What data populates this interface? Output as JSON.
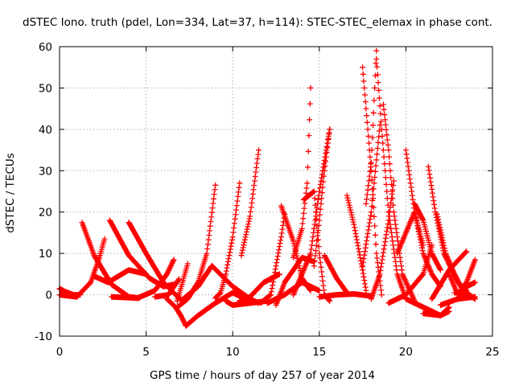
{
  "chart_data": {
    "type": "scatter",
    "title": "dSTEC Iono. truth (pdel, Lon=334, Lat=37, h=114): STEC-STEC_elemax in phase cont.",
    "xlabel": "GPS time / hours of day 257 of year 2014",
    "ylabel": "dSTEC  / TECUs",
    "xlim": [
      0,
      25
    ],
    "ylim": [
      -10,
      60
    ],
    "xticks": [
      "0",
      "5",
      "10",
      "15",
      "20",
      "25"
    ],
    "yticks": [
      "-10",
      "0",
      "10",
      "20",
      "30",
      "40",
      "50",
      "60"
    ],
    "grid": true,
    "marker": "+",
    "color": "#ff0000",
    "series": [
      {
        "x": [
          0.0,
          0.3,
          0.8,
          1.2
        ],
        "y": [
          1.5,
          0.8,
          0.0,
          0.0
        ]
      },
      {
        "x": [
          0.0,
          1.0,
          1.8,
          2.3,
          2.6
        ],
        "y": [
          0.0,
          -0.5,
          3.0,
          9.0,
          13.5
        ]
      },
      {
        "x": [
          1.3,
          2.0,
          3.0,
          4.0,
          4.6
        ],
        "y": [
          17.5,
          9.5,
          2.5,
          -0.5,
          -0.8
        ]
      },
      {
        "x": [
          2.0,
          2.8,
          4.0,
          5.0
        ],
        "y": [
          4.5,
          3.0,
          6.0,
          5.0
        ]
      },
      {
        "x": [
          2.9,
          4.0,
          5.2,
          6.0,
          6.6
        ],
        "y": [
          18.0,
          9.5,
          4.0,
          2.0,
          2.5
        ]
      },
      {
        "x": [
          3.0,
          4.5,
          5.5,
          6.2,
          6.6
        ],
        "y": [
          -0.5,
          -0.8,
          1.0,
          5.0,
          8.5
        ]
      },
      {
        "x": [
          4.0,
          5.0,
          6.0,
          6.7,
          7.0
        ],
        "y": [
          17.5,
          10.0,
          3.0,
          0.0,
          -1.0
        ]
      },
      {
        "x": [
          5.5,
          6.3,
          6.6,
          6.9
        ],
        "y": [
          -0.5,
          0.0,
          2.0,
          3.8
        ]
      },
      {
        "x": [
          6.2,
          6.7,
          7.0,
          7.3
        ],
        "y": [
          -1.0,
          -3.0,
          -5.0,
          -7.5
        ]
      },
      {
        "x": [
          6.8,
          7.1,
          7.4
        ],
        "y": [
          -1.5,
          3.0,
          7.5
        ]
      },
      {
        "x": [
          7.3,
          8.0,
          9.0,
          10.0,
          10.5
        ],
        "y": [
          -7.5,
          -5.0,
          -2.0,
          0.5,
          -0.5
        ]
      },
      {
        "x": [
          6.8,
          7.4,
          8.0,
          8.5,
          9.0
        ],
        "y": [
          -3.0,
          -1.0,
          3.0,
          10.0,
          26.5
        ]
      },
      {
        "x": [
          7.0,
          8.0,
          8.8
        ],
        "y": [
          -1.5,
          2.0,
          7.0
        ]
      },
      {
        "x": [
          9.0,
          9.3,
          9.6,
          10.0,
          10.4
        ],
        "y": [
          -0.8,
          0.5,
          5.0,
          14.0,
          27.0
        ]
      },
      {
        "x": [
          9.6,
          10.0,
          11.0,
          12.0
        ],
        "y": [
          -1.5,
          -2.5,
          -2.0,
          -1.5
        ]
      },
      {
        "x": [
          8.8,
          10.0,
          11.0,
          11.5
        ],
        "y": [
          7.0,
          2.0,
          -1.0,
          -2.0
        ]
      },
      {
        "x": [
          10.5,
          11.0,
          11.5
        ],
        "y": [
          9.5,
          19.0,
          35.0
        ]
      },
      {
        "x": [
          10.4,
          11.0,
          11.8,
          12.7
        ],
        "y": [
          -1.5,
          -0.5,
          3.0,
          5.0
        ]
      },
      {
        "x": [
          11.6,
          12.2,
          12.8,
          13.0
        ],
        "y": [
          -2.0,
          0.0,
          14.0,
          19.5
        ]
      },
      {
        "x": [
          12.5,
          13.0,
          14.0,
          14.7
        ],
        "y": [
          -2.5,
          3.0,
          9.0,
          8.0
        ]
      },
      {
        "x": [
          12.0,
          13.0,
          14.0,
          15.0
        ],
        "y": [
          -2.0,
          0.0,
          3.0,
          1.0
        ]
      },
      {
        "x": [
          12.8,
          13.5,
          14.0,
          14.5
        ],
        "y": [
          21.5,
          13.0,
          4.0,
          1.0
        ]
      },
      {
        "x": [
          13.5,
          14.0,
          14.3,
          14.5
        ],
        "y": [
          9.0,
          16.0,
          27.0,
          50.0
        ]
      },
      {
        "x": [
          14.1,
          14.7,
          15.0,
          15.3,
          15.6
        ],
        "y": [
          23.0,
          25.0,
          10.0,
          0.0,
          -1.5
        ]
      },
      {
        "x": [
          14.7,
          15.0,
          15.3,
          15.6
        ],
        "y": [
          7.0,
          18.0,
          30.0,
          40.0
        ]
      },
      {
        "x": [
          15.6,
          15.0,
          14.5,
          13.5
        ],
        "y": [
          40.0,
          25.0,
          10.0,
          0.0
        ]
      },
      {
        "x": [
          15.3,
          16.0,
          16.6
        ],
        "y": [
          9.5,
          4.0,
          0.5
        ]
      },
      {
        "x": [
          15.0,
          16.0,
          17.0,
          18.0
        ],
        "y": [
          -0.5,
          0.0,
          0.2,
          -0.3
        ]
      },
      {
        "x": [
          16.6,
          17.0,
          17.5,
          17.7
        ],
        "y": [
          24.0,
          17.0,
          6.0,
          1.0
        ]
      },
      {
        "x": [
          17.5,
          18.0,
          18.3,
          18.6
        ],
        "y": [
          55.0,
          30.0,
          10.0,
          0.0
        ]
      },
      {
        "x": [
          17.7,
          18.0,
          18.3
        ],
        "y": [
          22.0,
          32.0,
          59.0
        ]
      },
      {
        "x": [
          18.3,
          18.6,
          19.0,
          19.5,
          20.0
        ],
        "y": [
          57.0,
          40.0,
          20.0,
          5.0,
          -1.0
        ]
      },
      {
        "x": [
          18.0,
          18.5,
          19.0,
          19.3
        ],
        "y": [
          -1.0,
          5.0,
          18.0,
          27.5
        ]
      },
      {
        "x": [
          18.7,
          19.0,
          19.3,
          19.8,
          20.5
        ],
        "y": [
          46.0,
          35.0,
          20.0,
          5.0,
          -1.5
        ]
      },
      {
        "x": [
          17.5,
          18.0,
          18.5
        ],
        "y": [
          7.0,
          20.0,
          41.0
        ]
      },
      {
        "x": [
          19.0,
          20.0,
          21.0,
          21.5
        ],
        "y": [
          -2.0,
          0.0,
          5.0,
          12.0
        ]
      },
      {
        "x": [
          19.5,
          20.0,
          20.5,
          21.0
        ],
        "y": [
          10.0,
          15.0,
          20.0,
          12.0
        ]
      },
      {
        "x": [
          20.0,
          20.5,
          21.0,
          21.5,
          22.0
        ],
        "y": [
          35.0,
          20.0,
          10.0,
          5.0,
          2.0
        ]
      },
      {
        "x": [
          20.5,
          21.0,
          21.5,
          22.0
        ],
        "y": [
          22.0,
          18.0,
          10.0,
          6.0
        ]
      },
      {
        "x": [
          21.3,
          21.7,
          22.2,
          23.0,
          23.5
        ],
        "y": [
          31.0,
          20.0,
          10.0,
          3.0,
          1.0
        ]
      },
      {
        "x": [
          20.0,
          21.0,
          22.0,
          22.5
        ],
        "y": [
          -1.0,
          -3.0,
          -5.0,
          -4.0
        ]
      },
      {
        "x": [
          21.0,
          22.0,
          22.5
        ],
        "y": [
          -4.5,
          -5.0,
          -3.0
        ]
      },
      {
        "x": [
          21.8,
          22.3,
          22.8,
          23.3
        ],
        "y": [
          19.5,
          10.0,
          5.0,
          1.0
        ]
      },
      {
        "x": [
          21.5,
          22.5,
          23.5
        ],
        "y": [
          -1.0,
          6.0,
          10.5
        ]
      },
      {
        "x": [
          22.0,
          23.0,
          24.0
        ],
        "y": [
          -2.5,
          -1.0,
          -0.5
        ]
      },
      {
        "x": [
          22.5,
          23.0,
          23.5,
          24.0
        ],
        "y": [
          5.0,
          0.0,
          3.0,
          8.5
        ]
      },
      {
        "x": [
          23.0,
          23.5,
          24.0
        ],
        "y": [
          -1.0,
          2.0,
          3.0
        ]
      },
      {
        "x": [
          22.8,
          23.5,
          24.0
        ],
        "y": [
          0.5,
          0.5,
          -1.0
        ]
      }
    ]
  }
}
